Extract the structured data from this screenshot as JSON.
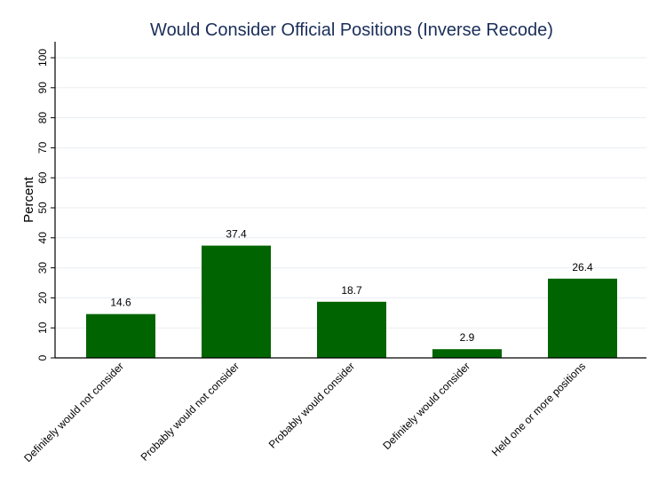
{
  "chart_data": {
    "type": "bar",
    "title": "Would Consider Official Positions (Inverse Recode)",
    "xlabel": "",
    "ylabel": "Percent",
    "ylim": [
      0,
      100
    ],
    "yticks": [
      0,
      10,
      20,
      30,
      40,
      50,
      60,
      70,
      80,
      90,
      100
    ],
    "grid": true,
    "categories": [
      "Definitely would not consider",
      "Probably would not consider",
      "Probably would consider",
      "Definitely would consider",
      "Held one or more positions"
    ],
    "values": [
      14.6,
      37.4,
      18.7,
      2.9,
      26.4
    ],
    "data_labels": [
      "14.6",
      "37.4",
      "18.7",
      "2.9",
      "26.4"
    ],
    "colors": {
      "bar": "#006400",
      "title": "#1a2e5a",
      "grid": "#e8eef2"
    }
  }
}
